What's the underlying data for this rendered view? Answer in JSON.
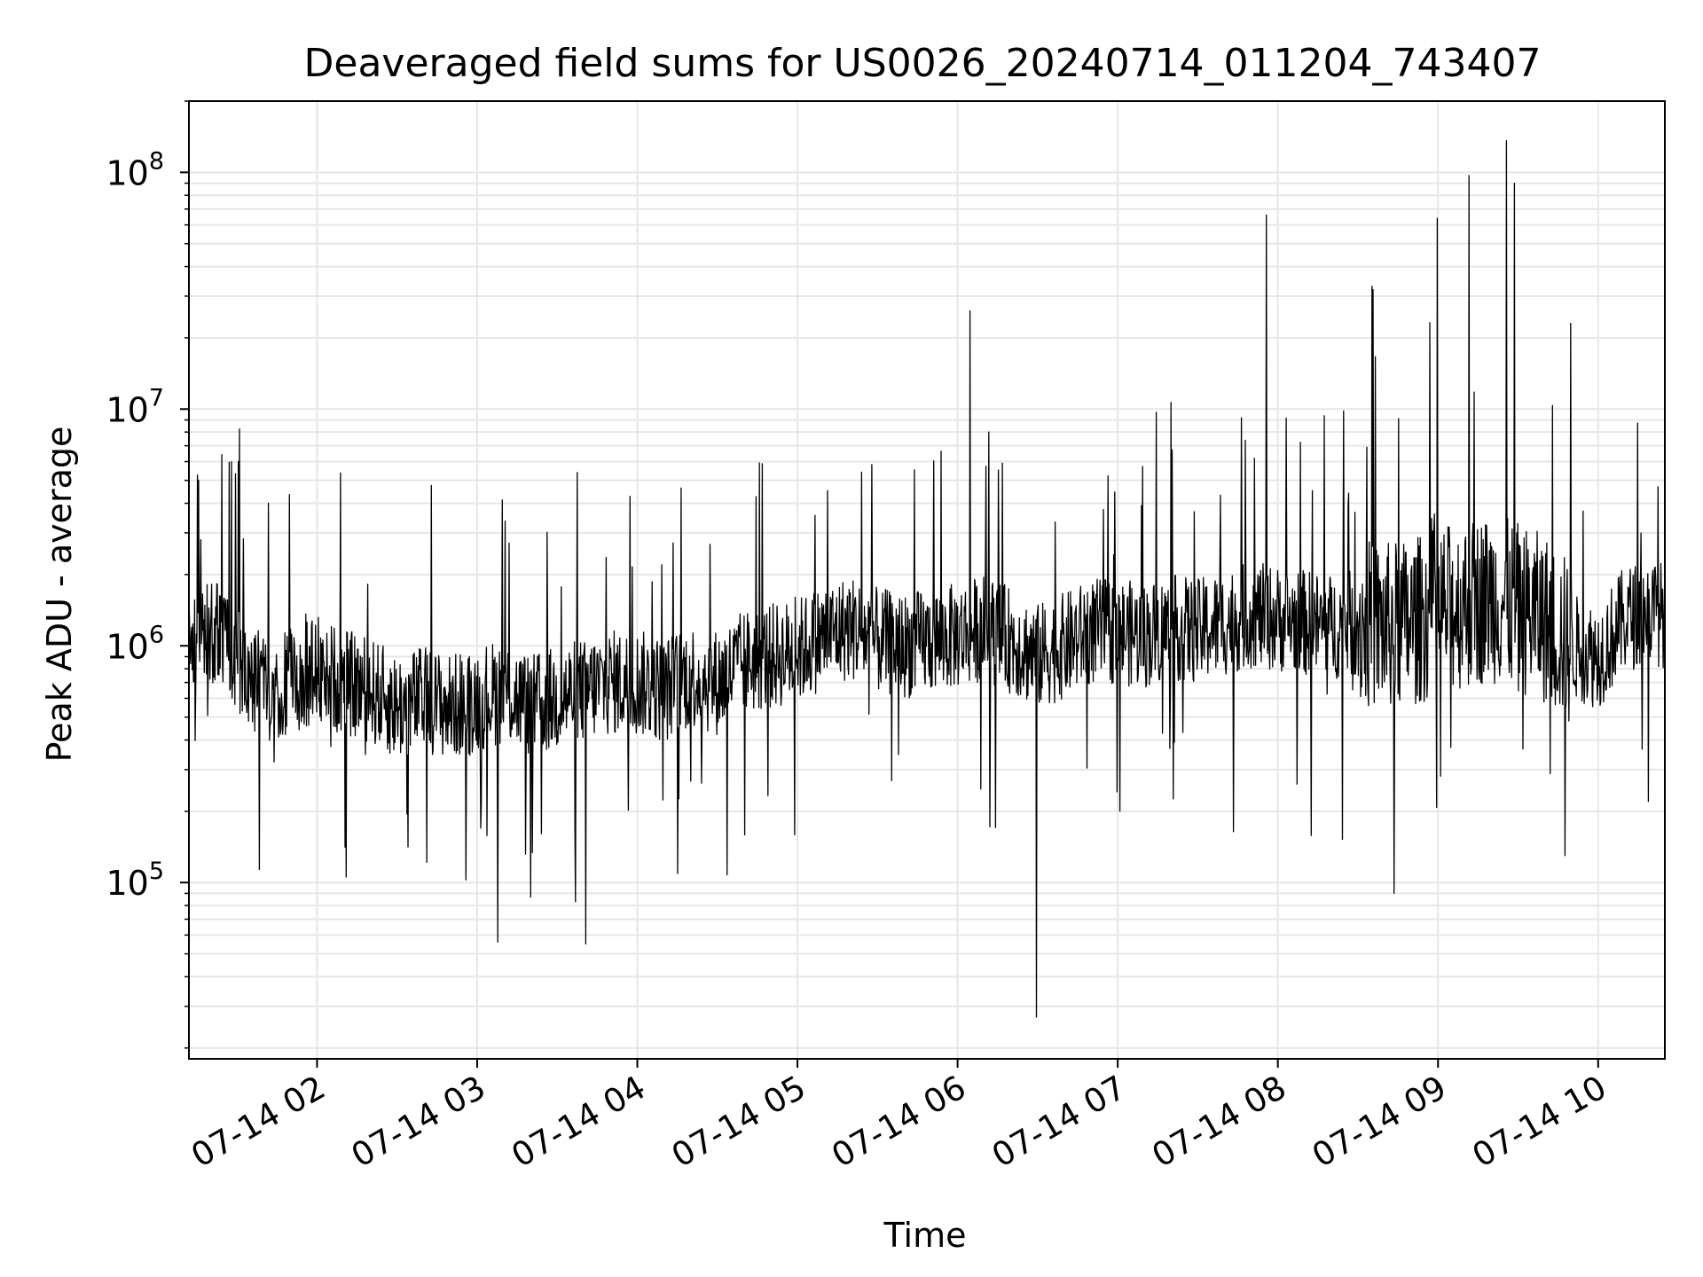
{
  "chart_data": {
    "type": "line",
    "title": "Deaveraged field sums for US0026_20240714_011204_743407",
    "xlabel": "Time",
    "ylabel": "Peak ADU - average",
    "yscale": "log",
    "grid": true,
    "grid_minor": true,
    "xlim": [
      "2024-07-14 01:12",
      "2024-07-14 10:25"
    ],
    "ylim": [
      18000,
      200000000
    ],
    "x_ticks": [
      {
        "value": "2024-07-14 02:00",
        "label": "07-14 02"
      },
      {
        "value": "2024-07-14 03:00",
        "label": "07-14 03"
      },
      {
        "value": "2024-07-14 04:00",
        "label": "07-14 04"
      },
      {
        "value": "2024-07-14 05:00",
        "label": "07-14 05"
      },
      {
        "value": "2024-07-14 06:00",
        "label": "07-14 06"
      },
      {
        "value": "2024-07-14 07:00",
        "label": "07-14 07"
      },
      {
        "value": "2024-07-14 08:00",
        "label": "07-14 08"
      },
      {
        "value": "2024-07-14 09:00",
        "label": "07-14 09"
      },
      {
        "value": "2024-07-14 10:00",
        "label": "07-14 10"
      }
    ],
    "y_ticks": [
      {
        "value": 100000,
        "base": "10",
        "exp": "5"
      },
      {
        "value": 1000000,
        "base": "10",
        "exp": "6"
      },
      {
        "value": 10000000,
        "base": "10",
        "exp": "7"
      },
      {
        "value": 100000000,
        "base": "10",
        "exp": "8"
      }
    ],
    "line_color": "#000000",
    "grid_color": "#e6e6e6",
    "series": [
      {
        "x": [
          "2024-07-14 01:12",
          "2024-07-14 01:20",
          "2024-07-14 01:30",
          "2024-07-14 01:40",
          "2024-07-14 01:50",
          "2024-07-14 02:00",
          "2024-07-14 02:10",
          "2024-07-14 02:20",
          "2024-07-14 02:30",
          "2024-07-14 02:40",
          "2024-07-14 02:50",
          "2024-07-14 03:00",
          "2024-07-14 03:10",
          "2024-07-14 03:20",
          "2024-07-14 03:30",
          "2024-07-14 03:40",
          "2024-07-14 03:50",
          "2024-07-14 04:00",
          "2024-07-14 04:10",
          "2024-07-14 04:20",
          "2024-07-14 04:30",
          "2024-07-14 04:40",
          "2024-07-14 04:50",
          "2024-07-14 05:00",
          "2024-07-14 05:10",
          "2024-07-14 05:20",
          "2024-07-14 05:30",
          "2024-07-14 05:40",
          "2024-07-14 05:50",
          "2024-07-14 06:00",
          "2024-07-14 06:10",
          "2024-07-14 06:20",
          "2024-07-14 06:30",
          "2024-07-14 06:40",
          "2024-07-14 06:50",
          "2024-07-14 07:00",
          "2024-07-14 07:10",
          "2024-07-14 07:20",
          "2024-07-14 07:30",
          "2024-07-14 07:40",
          "2024-07-14 07:50",
          "2024-07-14 08:00",
          "2024-07-14 08:10",
          "2024-07-14 08:20",
          "2024-07-14 08:30",
          "2024-07-14 08:40",
          "2024-07-14 08:50",
          "2024-07-14 09:00",
          "2024-07-14 09:10",
          "2024-07-14 09:20",
          "2024-07-14 09:30",
          "2024-07-14 09:40",
          "2024-07-14 09:50",
          "2024-07-14 10:00",
          "2024-07-14 10:10",
          "2024-07-14 10:20",
          "2024-07-14 10:25"
        ],
        "y": [
          1000000,
          1200000,
          900000,
          650000,
          700000,
          800000,
          700000,
          650000,
          550000,
          600000,
          550000,
          600000,
          650000,
          550000,
          600000,
          650000,
          700000,
          700000,
          650000,
          750000,
          700000,
          850000,
          900000,
          950000,
          1100000,
          1200000,
          1050000,
          1000000,
          1050000,
          1100000,
          1200000,
          1050000,
          900000,
          1000000,
          1150000,
          1150000,
          1100000,
          1200000,
          1150000,
          1250000,
          1350000,
          1300000,
          1250000,
          1200000,
          1250000,
          1200000,
          1250000,
          1400000,
          1500000,
          1600000,
          1450000,
          1300000,
          1000000,
          900000,
          1300000,
          1400000,
          1350000
        ],
        "spikes": [
          {
            "x": "2024-07-14 01:16",
            "y": 5000000
          },
          {
            "x": "2024-07-14 01:31",
            "y": 6000000
          },
          {
            "x": "2024-07-14 03:08",
            "y": 56000
          },
          {
            "x": "2024-07-14 03:41",
            "y": 55000
          },
          {
            "x": "2024-07-14 06:05",
            "y": 26000000
          },
          {
            "x": "2024-07-14 06:12",
            "y": 8000000
          },
          {
            "x": "2024-07-14 06:30",
            "y": 27000
          },
          {
            "x": "2024-07-14 07:56",
            "y": 66000000
          },
          {
            "x": "2024-07-14 08:36",
            "y": 32000000
          },
          {
            "x": "2024-07-14 08:44",
            "y": 90000
          },
          {
            "x": "2024-07-14 09:00",
            "y": 64000000
          },
          {
            "x": "2024-07-14 09:12",
            "y": 97000000
          },
          {
            "x": "2024-07-14 09:26",
            "y": 136000000
          },
          {
            "x": "2024-07-14 09:29",
            "y": 90000000
          },
          {
            "x": "2024-07-14 09:50",
            "y": 23000000
          },
          {
            "x": "2024-07-14 09:48",
            "y": 130000
          }
        ]
      }
    ]
  }
}
